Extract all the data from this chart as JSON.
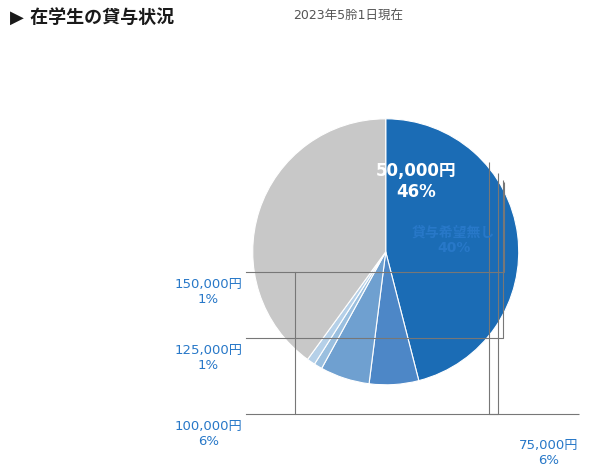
{
  "title_main": "▶ 在学生の貸与状況",
  "title_sub": "2023年5朎1日現在",
  "slices": [
    {
      "label": "50,000円",
      "pct": 46,
      "color": "#1b6cb5"
    },
    {
      "label": "75,000円",
      "pct": 6,
      "color": "#4d87c7"
    },
    {
      "label": "100,000円",
      "pct": 6,
      "color": "#6fa0d0"
    },
    {
      "label": "125,000円",
      "pct": 1,
      "color": "#9abfdf"
    },
    {
      "label": "150,000円",
      "pct": 1,
      "color": "#b5d0e8"
    },
    {
      "label": "貸与希望無し",
      "pct": 40,
      "color": "#c8c8c8"
    }
  ],
  "label_color": "#2878c8",
  "label_color_dark": "#333333",
  "bg_color": "#ffffff",
  "start_angle": 90
}
